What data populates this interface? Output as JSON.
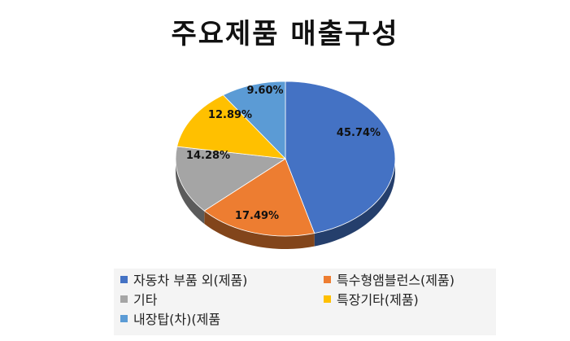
{
  "chart_data": {
    "type": "pie",
    "title": "주요제품 매출구성",
    "slices": [
      {
        "name": "자동차 부품 외(제품)",
        "value": 45.74,
        "label": "45.74%",
        "color": "#4472C4"
      },
      {
        "name": "특수형앰블런스(제품)",
        "value": 17.49,
        "label": "17.49%",
        "color": "#ED7D31"
      },
      {
        "name": "기타",
        "value": 14.28,
        "label": "14.28%",
        "color": "#A5A5A5"
      },
      {
        "name": "특장기타(제품)",
        "value": 12.89,
        "label": "12.89%",
        "color": "#FFC000"
      },
      {
        "name": "내장탑(차)(제품",
        "value": 9.6,
        "label": "9.60%",
        "color": "#5B9BD5"
      }
    ],
    "legend_position": "bottom"
  }
}
